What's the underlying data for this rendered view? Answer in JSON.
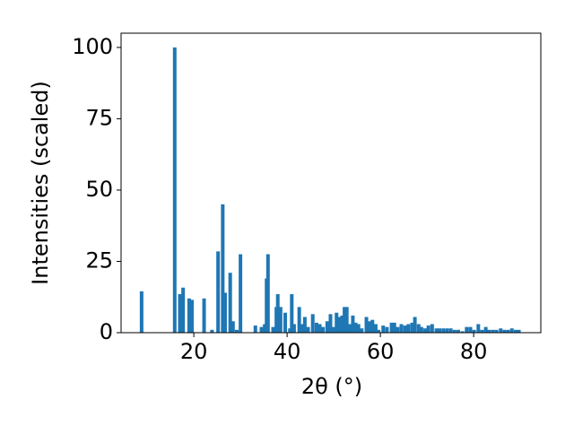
{
  "chart_data": {
    "type": "bar",
    "color": "#1f77b4",
    "xlabel": "2θ (°)",
    "ylabel": "Intensities (scaled)",
    "x": [
      8.8,
      15.9,
      17.0,
      17.7,
      19.0,
      19.6,
      22.2,
      23.9,
      25.2,
      26.2,
      26.7,
      27.8,
      28.4,
      29.2,
      30.0,
      33.2,
      34.5,
      35.2,
      35.6,
      35.9,
      37.0,
      37.7,
      38.0,
      38.6,
      39.6,
      40.6,
      41.0,
      41.5,
      42.6,
      43.2,
      43.8,
      44.5,
      45.5,
      46.3,
      47.0,
      47.7,
      48.6,
      49.3,
      50.0,
      50.6,
      51.2,
      51.8,
      52.3,
      52.8,
      53.5,
      54.1,
      54.7,
      55.3,
      56.0,
      57.0,
      57.6,
      58.3,
      59.0,
      59.6,
      60.6,
      61.4,
      62.4,
      63.0,
      63.7,
      64.5,
      65.3,
      66.0,
      66.8,
      67.4,
      68.2,
      68.8,
      69.6,
      70.3,
      71.1,
      72.0,
      72.7,
      73.5,
      74.3,
      75.1,
      75.9,
      76.7,
      77.6,
      78.5,
      79.3,
      80.1,
      81.0,
      81.8,
      82.6,
      83.3,
      84.1,
      84.9,
      85.8,
      86.6,
      87.4,
      88.2,
      89.0,
      89.7
    ],
    "values": [
      14.5,
      100,
      13.5,
      15.8,
      12,
      11.5,
      12,
      1,
      28.5,
      45,
      14,
      21,
      4,
      1,
      27.5,
      2.5,
      2,
      3,
      19,
      27.5,
      2,
      9,
      13.5,
      9,
      7,
      1.5,
      13.5,
      3,
      9,
      3,
      5.5,
      2,
      6.5,
      3.5,
      3,
      2,
      4,
      6.5,
      2,
      7,
      5.5,
      6,
      9,
      9,
      3,
      6,
      3.5,
      3,
      1.5,
      5.5,
      4,
      4.5,
      3,
      1,
      2.5,
      2,
      3.5,
      3.5,
      2,
      3,
      2.5,
      3,
      3.5,
      5.5,
      3,
      2,
      1.5,
      2.5,
      3,
      1.5,
      1.5,
      1.5,
      1.5,
      1.5,
      1,
      1,
      0.5,
      2,
      2,
      1,
      3,
      1,
      2,
      1,
      1,
      1,
      1.5,
      1,
      1,
      1.5,
      1,
      1
    ],
    "xlim": [
      4.4,
      94.4
    ],
    "xticks": [
      20,
      40,
      60,
      80
    ],
    "ylim": [
      0,
      105
    ],
    "yticks": [
      0,
      25,
      50,
      75,
      100
    ]
  }
}
